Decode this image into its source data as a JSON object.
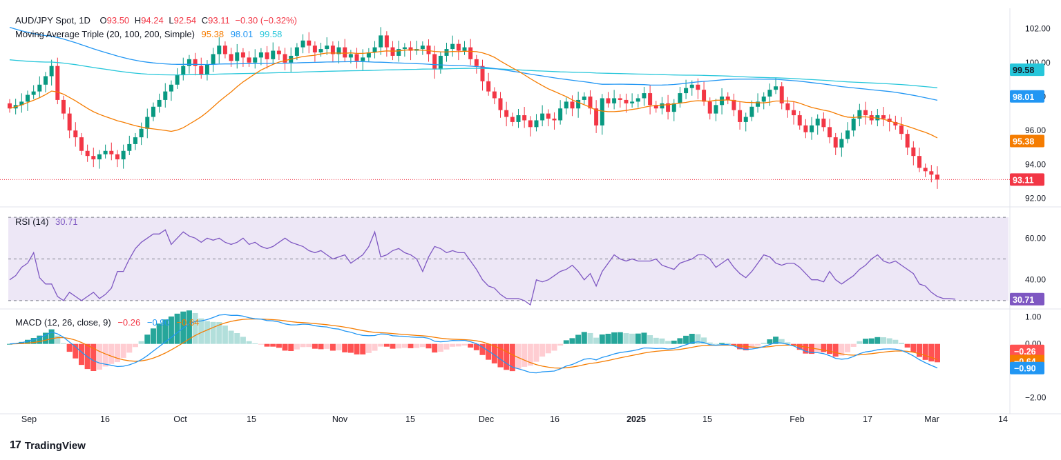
{
  "header": {
    "symbol": "AUD/JPY Spot, 1D",
    "o_label": "O",
    "o_val": "93.50",
    "h_label": "H",
    "h_val": "94.24",
    "l_label": "L",
    "l_val": "92.54",
    "c_label": "C",
    "c_val": "93.11",
    "change": "−0.30 (−0.32%)"
  },
  "ma_legend": {
    "name": "Moving Average Triple (20, 100, 200, Simple)",
    "v20": "95.38",
    "v100": "98.01",
    "v200": "99.58"
  },
  "rsi_legend": {
    "name": "RSI (14)",
    "value": "30.71"
  },
  "macd_legend": {
    "name": "MACD (12, 26, close, 9)",
    "hist": "−0.26",
    "macd": "−0.90",
    "signal": "−0.64"
  },
  "brand": {
    "logo": "17",
    "text": "TradingView"
  },
  "colors": {
    "up": "#089981",
    "down": "#f23645",
    "ma20": "#f57c00",
    "ma100": "#2196f3",
    "ma200": "#26c6da",
    "rsi": "#7e57c2",
    "rsi_band": "#ede7f6",
    "hist_up_strong": "#26a69a",
    "hist_up_weak": "#b2dfdb",
    "hist_dn_strong": "#ff5252",
    "hist_dn_weak": "#ffcdd2"
  },
  "chart_data": [
    {
      "type": "candlestick",
      "title": "AUD/JPY Spot, 1D",
      "ylim": [
        91.5,
        103.2
      ],
      "y_ticks": [
        "92.00",
        "94.00",
        "96.00",
        "98.00",
        "100.00",
        "102.00"
      ],
      "x_ticks": [
        "Sep",
        "16",
        "Oct",
        "15",
        "Nov",
        "15",
        "Dec",
        "16",
        "2025",
        "15",
        "Feb",
        "17",
        "Mar",
        "14"
      ],
      "price_labels": [
        {
          "name": "MA200",
          "value": "99.58"
        },
        {
          "name": "MA100",
          "value": "98.01"
        },
        {
          "name": "MA20",
          "value": "95.38"
        },
        {
          "name": "Last",
          "value": "93.11"
        }
      ],
      "close": [
        97.3,
        97.5,
        97.7,
        98.1,
        98.3,
        98.7,
        99.2,
        99.8,
        97.8,
        97.0,
        96.0,
        95.6,
        94.8,
        94.5,
        94.3,
        94.6,
        94.8,
        94.6,
        94.3,
        94.8,
        95.2,
        95.6,
        96.1,
        96.8,
        97.4,
        97.8,
        98.3,
        98.7,
        99.3,
        99.8,
        100.2,
        99.8,
        99.3,
        99.9,
        100.5,
        101.0,
        100.5,
        100.1,
        100.6,
        100.3,
        100.0,
        100.3,
        100.6,
        100.2,
        100.7,
        100.5,
        100.0,
        100.4,
        100.9,
        101.3,
        101.0,
        100.6,
        100.8,
        101.0,
        100.5,
        100.9,
        100.3,
        100.5,
        100.1,
        100.3,
        100.6,
        100.9,
        101.6,
        100.9,
        100.4,
        100.8,
        100.9,
        100.7,
        100.8,
        101.0,
        100.5,
        99.6,
        100.4,
        100.8,
        101.1,
        100.7,
        100.9,
        100.2,
        99.8,
        98.9,
        98.3,
        97.9,
        97.2,
        96.8,
        96.5,
        96.9,
        96.6,
        96.2,
        96.6,
        97.0,
        96.7,
        96.6,
        97.3,
        97.7,
        97.3,
        97.8,
        98.0,
        97.3,
        96.3,
        97.9,
        97.6,
        97.9,
        97.8,
        97.6,
        97.7,
        97.9,
        98.2,
        97.5,
        97.3,
        97.6,
        97.1,
        97.6,
        98.2,
        98.5,
        98.7,
        98.4,
        97.7,
        97.0,
        97.5,
        98.0,
        97.8,
        97.2,
        96.5,
        96.8,
        97.4,
        97.7,
        98.0,
        98.4,
        98.6,
        97.6,
        97.2,
        96.9,
        96.3,
        95.9,
        96.3,
        96.7,
        96.2,
        95.6,
        95.0,
        95.5,
        96.0,
        96.7,
        97.2,
        96.9,
        96.6,
        96.9,
        96.7,
        96.5,
        96.3,
        95.8,
        95.0,
        94.5,
        93.8,
        93.6,
        93.4,
        93.11
      ],
      "rsi": {
        "ylim": [
          26,
          75
        ],
        "levels": [
          70,
          50,
          30
        ],
        "y_ticks": [
          "40.00",
          "60.00"
        ],
        "values": [
          40,
          42,
          46,
          48,
          53,
          41,
          38,
          38,
          32,
          30,
          34,
          32,
          30,
          32,
          34,
          31,
          33,
          36,
          44,
          44,
          50,
          55,
          58,
          60,
          62,
          62,
          64,
          57,
          60,
          63,
          61,
          60,
          58,
          60,
          59,
          60,
          58,
          57,
          58,
          60,
          57,
          58,
          56,
          55,
          56,
          58,
          60,
          58,
          57,
          56,
          54,
          53,
          54,
          52,
          50,
          51,
          52,
          48,
          50,
          52,
          56,
          63,
          51,
          52,
          54,
          55,
          53,
          52,
          50,
          44,
          51,
          56,
          55,
          53,
          54,
          53,
          53,
          49,
          45,
          40,
          37,
          36,
          33,
          31,
          31,
          31,
          30,
          28,
          40,
          39,
          40,
          42,
          44,
          45,
          47,
          44,
          40,
          43,
          37,
          44,
          48,
          52,
          50,
          49,
          50,
          49,
          49,
          49,
          50,
          47,
          46,
          45,
          48,
          49,
          50,
          52,
          52,
          50,
          46,
          48,
          50,
          46,
          43,
          41,
          44,
          48,
          52,
          51,
          48,
          47,
          48,
          48,
          46,
          43,
          40,
          40,
          39,
          44,
          40,
          38,
          40,
          42,
          45,
          47,
          50,
          52,
          49,
          48,
          49,
          47,
          45,
          43,
          38,
          37,
          34,
          32,
          31,
          31,
          30.71
        ]
      },
      "macd": {
        "ylim": [
          -2.6,
          1.3
        ],
        "y_ticks": [
          "1.00",
          "0.00",
          "−2.00"
        ],
        "zero": 0
      }
    }
  ]
}
